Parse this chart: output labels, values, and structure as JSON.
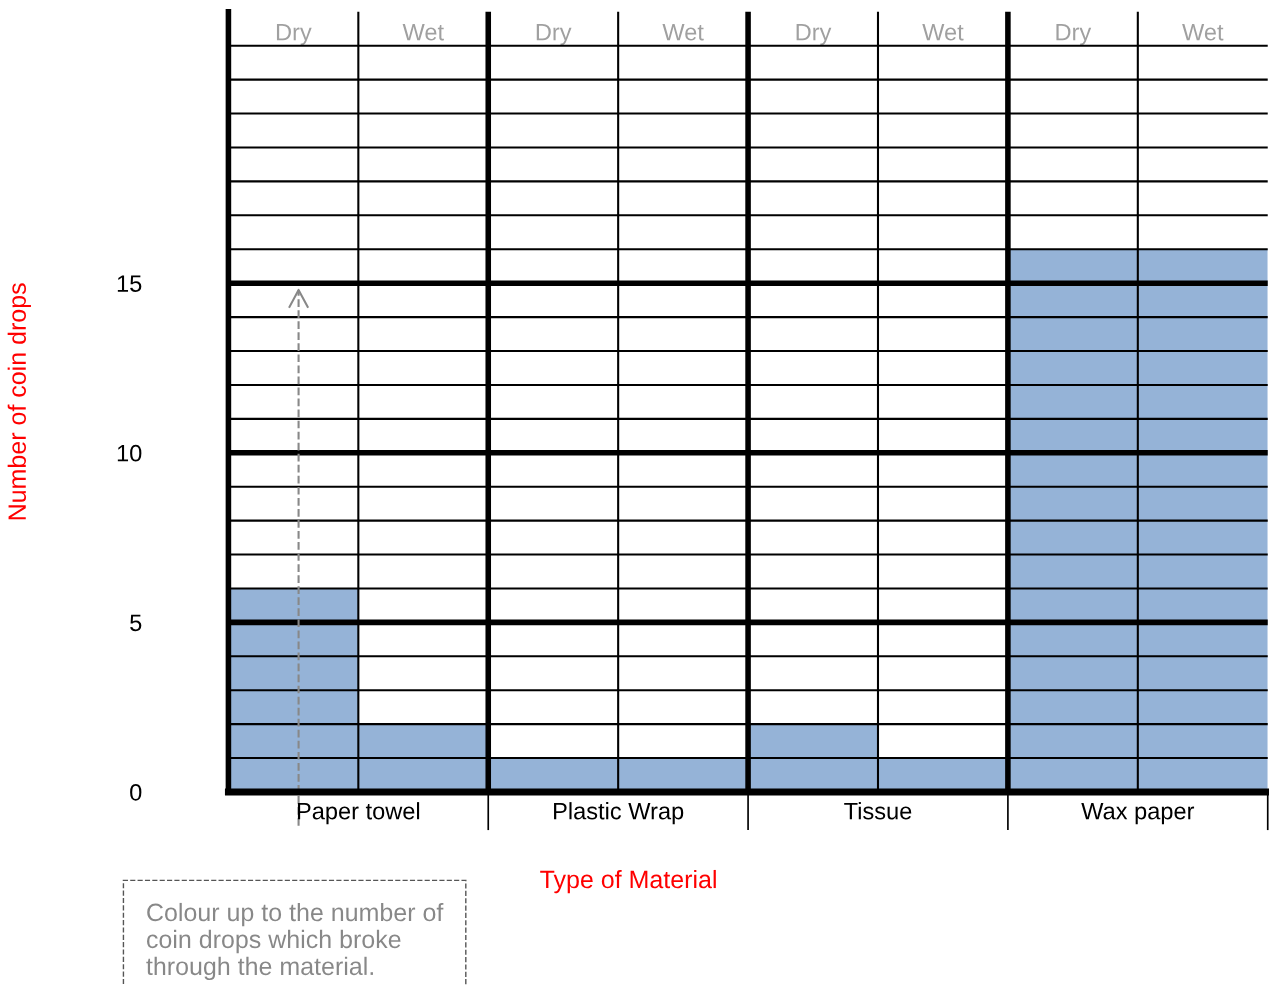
{
  "chart_data": {
    "type": "bar",
    "xlabel": "Type of Material",
    "ylabel": "Number of coin drops",
    "categories": [
      "Dry",
      "Wet",
      "Dry",
      "Wet",
      "Dry",
      "Wet",
      "Dry",
      "Wet"
    ],
    "values": [
      6,
      2,
      1,
      1,
      2,
      1,
      16,
      16
    ],
    "color": "#95b3d7",
    "ylim": [
      0,
      23
    ],
    "yticks": [
      0,
      {
        "value": 1,
        "label": null
      },
      {
        "value": 2,
        "label": null
      },
      {
        "value": 3,
        "label": null
      },
      {
        "value": 4,
        "label": null
      },
      5,
      {
        "value": 6,
        "label": null
      },
      {
        "value": 7,
        "label": null
      },
      {
        "value": 8,
        "label": null
      },
      {
        "value": 9,
        "label": null
      },
      10,
      {
        "value": 11,
        "label": null
      },
      {
        "value": 12,
        "label": null
      },
      {
        "value": 13,
        "label": null
      },
      {
        "value": 14,
        "label": null
      },
      15,
      {
        "value": 16,
        "label": null
      },
      {
        "value": 17,
        "label": null
      },
      {
        "value": 18,
        "label": null
      },
      {
        "value": 19,
        "label": null
      },
      {
        "value": 20,
        "label": null
      },
      {
        "value": 21,
        "label": null
      },
      {
        "value": 22,
        "label": null
      }
    ],
    "grid": true,
    "legend": false,
    "annotations": [
      "Paper towel",
      "Plastic Wrap",
      "Tissue",
      "Wax paper",
      "Colour up to the number of coin drops which broke through the material."
    ]
  }
}
